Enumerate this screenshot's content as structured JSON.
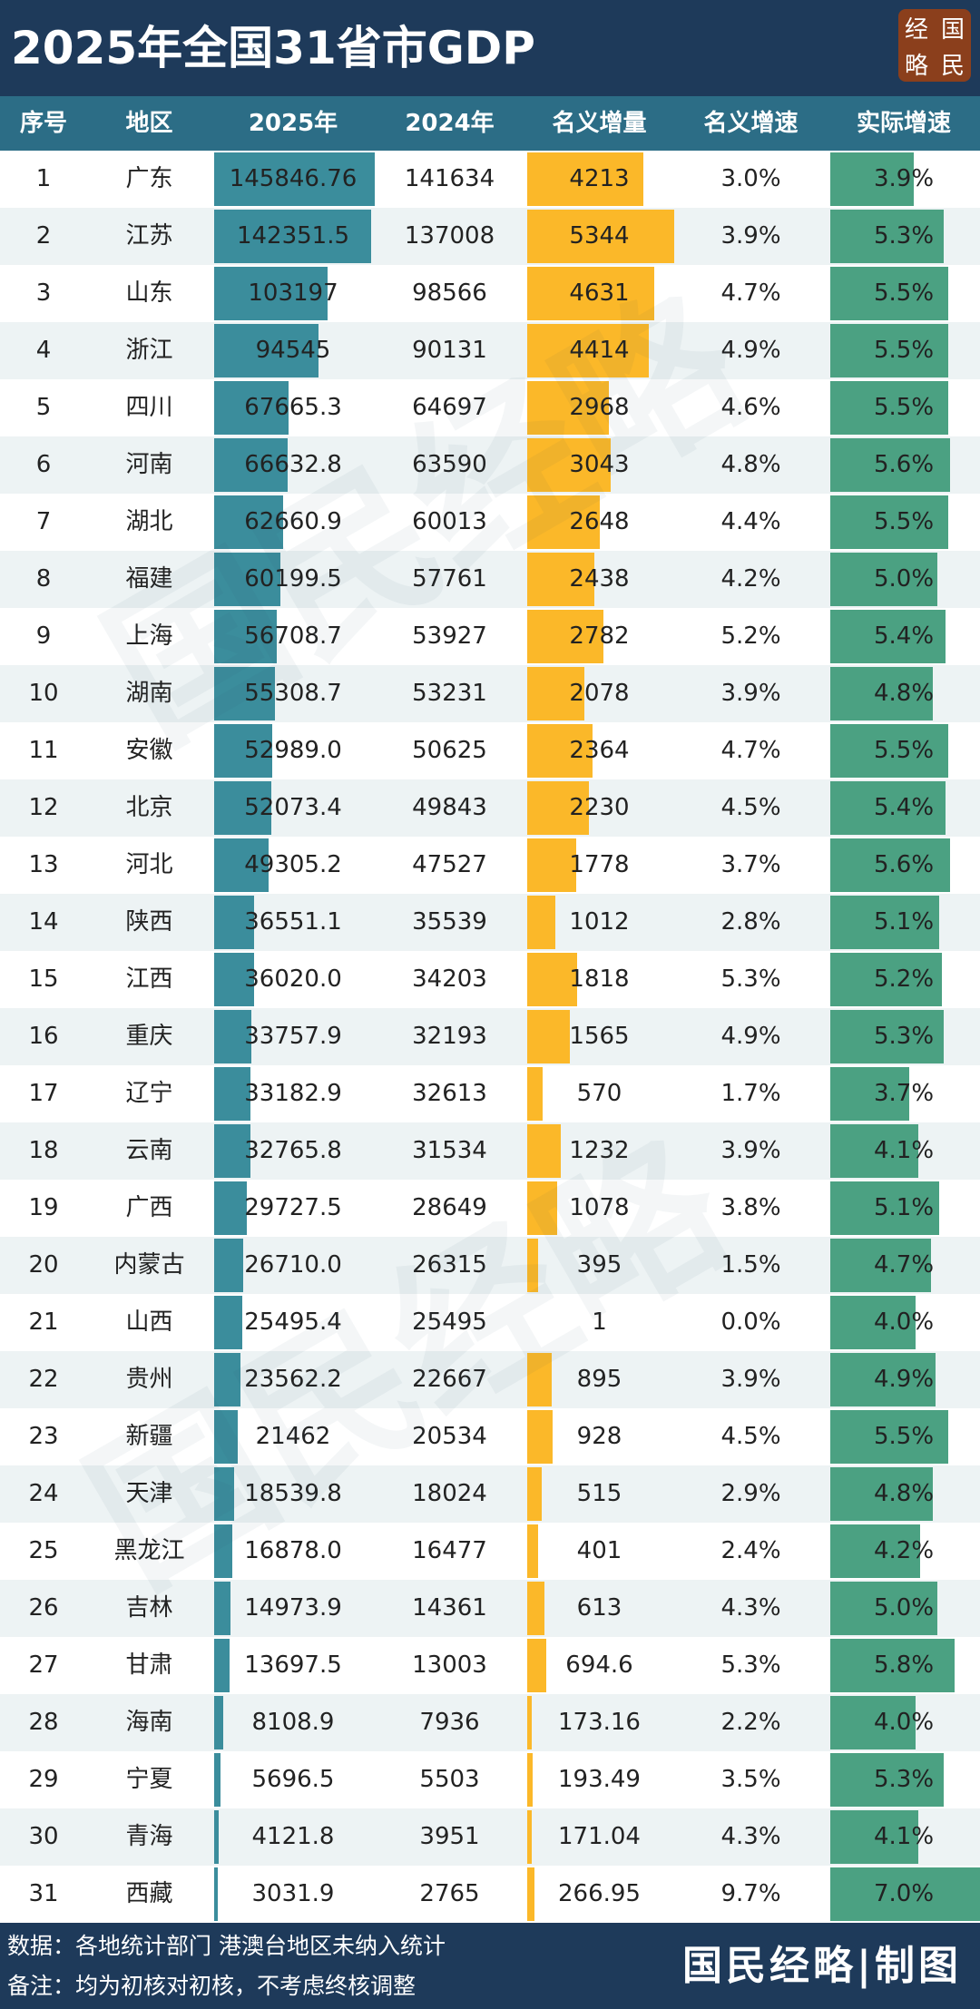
{
  "header": {
    "title": "2025年全国31省市GDP",
    "logo": [
      "经",
      "国",
      "略",
      "民"
    ]
  },
  "watermark": "国民经略",
  "table": {
    "columns": [
      "序号",
      "地区",
      "2025年",
      "2024年",
      "名义增量",
      "名义增速",
      "实际增速"
    ],
    "rows": [
      [
        "1",
        "广东",
        "145846.76",
        "141634",
        "4213",
        "3.0%",
        "3.9%"
      ],
      [
        "2",
        "江苏",
        "142351.5",
        "137008",
        "5344",
        "3.9%",
        "5.3%"
      ],
      [
        "3",
        "山东",
        "103197",
        "98566",
        "4631",
        "4.7%",
        "5.5%"
      ],
      [
        "4",
        "浙江",
        "94545",
        "90131",
        "4414",
        "4.9%",
        "5.5%"
      ],
      [
        "5",
        "四川",
        "67665.3",
        "64697",
        "2968",
        "4.6%",
        "5.5%"
      ],
      [
        "6",
        "河南",
        "66632.8",
        "63590",
        "3043",
        "4.8%",
        "5.6%"
      ],
      [
        "7",
        "湖北",
        "62660.9",
        "60013",
        "2648",
        "4.4%",
        "5.5%"
      ],
      [
        "8",
        "福建",
        "60199.5",
        "57761",
        "2438",
        "4.2%",
        "5.0%"
      ],
      [
        "9",
        "上海",
        "56708.7",
        "53927",
        "2782",
        "5.2%",
        "5.4%"
      ],
      [
        "10",
        "湖南",
        "55308.7",
        "53231",
        "2078",
        "3.9%",
        "4.8%"
      ],
      [
        "11",
        "安徽",
        "52989.0",
        "50625",
        "2364",
        "4.7%",
        "5.5%"
      ],
      [
        "12",
        "北京",
        "52073.4",
        "49843",
        "2230",
        "4.5%",
        "5.4%"
      ],
      [
        "13",
        "河北",
        "49305.2",
        "47527",
        "1778",
        "3.7%",
        "5.6%"
      ],
      [
        "14",
        "陕西",
        "36551.1",
        "35539",
        "1012",
        "2.8%",
        "5.1%"
      ],
      [
        "15",
        "江西",
        "36020.0",
        "34203",
        "1818",
        "5.3%",
        "5.2%"
      ],
      [
        "16",
        "重庆",
        "33757.9",
        "32193",
        "1565",
        "4.9%",
        "5.3%"
      ],
      [
        "17",
        "辽宁",
        "33182.9",
        "32613",
        "570",
        "1.7%",
        "3.7%"
      ],
      [
        "18",
        "云南",
        "32765.8",
        "31534",
        "1232",
        "3.9%",
        "4.1%"
      ],
      [
        "19",
        "广西",
        "29727.5",
        "28649",
        "1078",
        "3.8%",
        "5.1%"
      ],
      [
        "20",
        "内蒙古",
        "26710.0",
        "26315",
        "395",
        "1.5%",
        "4.7%"
      ],
      [
        "21",
        "山西",
        "25495.4",
        "25495",
        "1",
        "0.0%",
        "4.0%"
      ],
      [
        "22",
        "贵州",
        "23562.2",
        "22667",
        "895",
        "3.9%",
        "4.9%"
      ],
      [
        "23",
        "新疆",
        "21462",
        "20534",
        "928",
        "4.5%",
        "5.5%"
      ],
      [
        "24",
        "天津",
        "18539.8",
        "18024",
        "515",
        "2.9%",
        "4.8%"
      ],
      [
        "25",
        "黑龙江",
        "16878.0",
        "16477",
        "401",
        "2.4%",
        "4.2%"
      ],
      [
        "26",
        "吉林",
        "14973.9",
        "14361",
        "613",
        "4.3%",
        "5.0%"
      ],
      [
        "27",
        "甘肃",
        "13697.5",
        "13003",
        "694.6",
        "5.3%",
        "5.8%"
      ],
      [
        "28",
        "海南",
        "8108.9",
        "7936",
        "173.16",
        "2.2%",
        "4.0%"
      ],
      [
        "29",
        "宁夏",
        "5696.5",
        "5503",
        "193.49",
        "3.5%",
        "5.3%"
      ],
      [
        "30",
        "青海",
        "4121.8",
        "3951",
        "171.04",
        "4.3%",
        "4.1%"
      ],
      [
        "31",
        "西藏",
        "3031.9",
        "2765",
        "266.95",
        "9.7%",
        "7.0%"
      ]
    ]
  },
  "footer": {
    "notes": [
      "数据：各地统计部门  港澳台地区未纳入统计",
      "备注：均为初核对初核，不考虑终核调整"
    ],
    "credit": "国民经略|制图"
  }
}
